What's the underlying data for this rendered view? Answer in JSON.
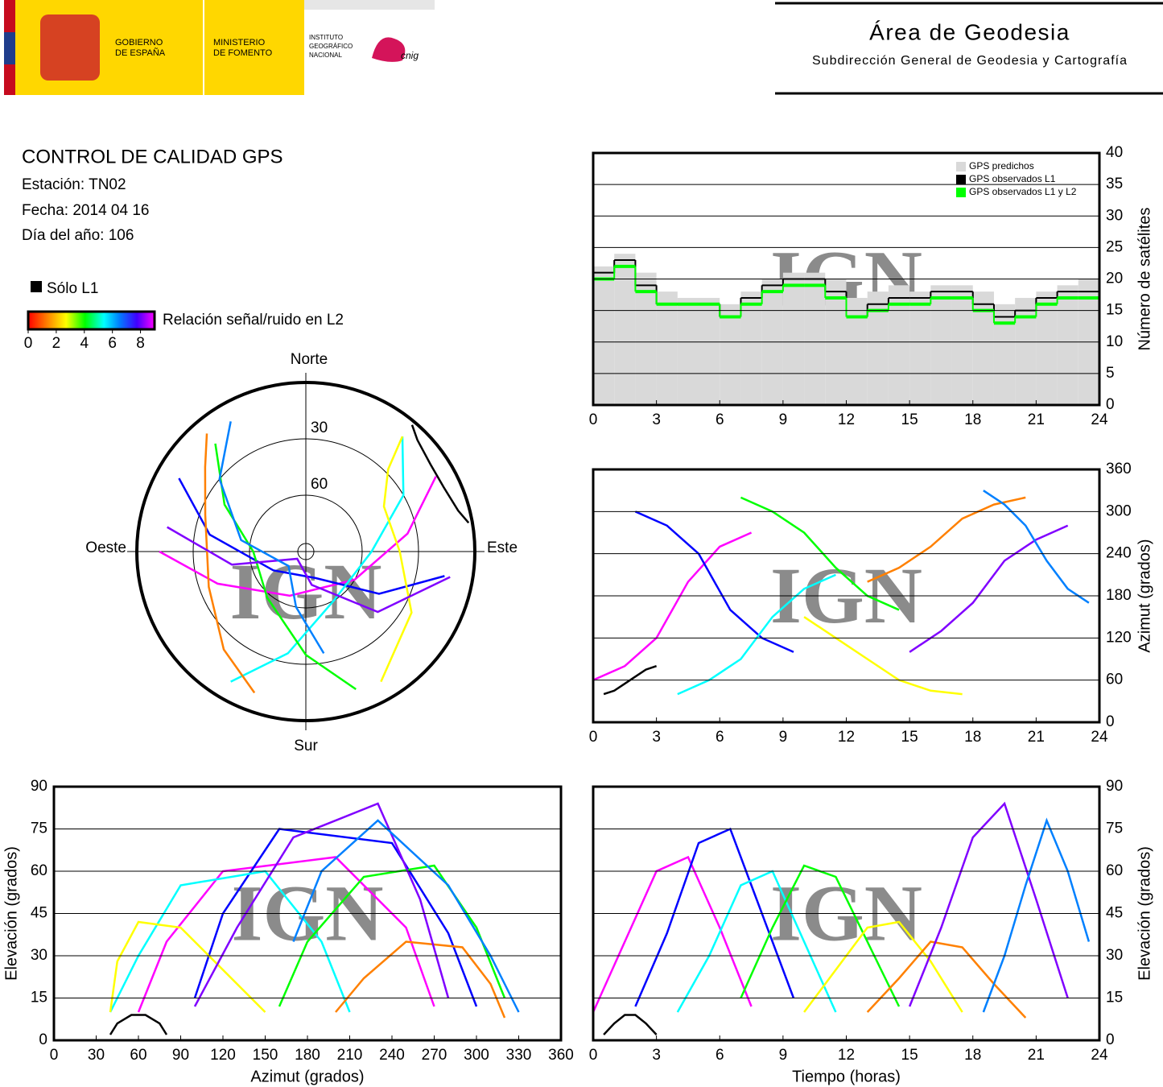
{
  "header": {
    "gov": [
      "GOBIERNO",
      "DE ESPAÑA"
    ],
    "ministry": [
      "MINISTERIO",
      "DE FOMENTO"
    ],
    "institute": [
      "INSTITUTO",
      "GEOGRÁFICO",
      "NACIONAL"
    ],
    "cnig": "cnig",
    "area": "Área de Geodesia",
    "subdirection": "Subdirección General de Geodesia y Cartografía"
  },
  "report": {
    "title": "CONTROL DE CALIDAD GPS",
    "station": "Estación: TN02",
    "date": "Fecha: 2014 04 16",
    "day_of_year": "Día del año: 106"
  },
  "legend": {
    "l1_only": "Sólo L1",
    "snr_label": "Relación señal/ruido en L2",
    "snr_lim": [
      0,
      9
    ],
    "snr_ticks": [
      0,
      2,
      4,
      6,
      8
    ]
  },
  "watermark": "IGN",
  "chart_data": [
    {
      "type": "step",
      "ylabel": "Número de satélites",
      "x": [
        0,
        1,
        2,
        3,
        4,
        5,
        6,
        7,
        8,
        9,
        10,
        11,
        12,
        13,
        14,
        15,
        16,
        17,
        18,
        19,
        20,
        21,
        22,
        23
      ],
      "series": [
        {
          "name": "GPS predichos",
          "color": "#d9d9d9",
          "fill": true,
          "values": [
            22,
            24,
            21,
            18,
            17,
            17,
            16,
            18,
            20,
            21,
            21,
            20,
            17,
            18,
            19,
            18,
            19,
            19,
            18,
            16,
            17,
            18,
            19,
            20
          ]
        },
        {
          "name": "GPS observados L1",
          "color": "#000000",
          "values": [
            21,
            23,
            19,
            16,
            16,
            16,
            14,
            17,
            19,
            20,
            20,
            18,
            14,
            16,
            17,
            17,
            18,
            18,
            16,
            14,
            15,
            17,
            18,
            18
          ]
        },
        {
          "name": "GPS observados L1 y L2",
          "color": "#00ff00",
          "values": [
            20,
            22,
            18,
            16,
            16,
            16,
            14,
            16,
            18,
            19,
            19,
            17,
            14,
            15,
            16,
            16,
            17,
            17,
            15,
            13,
            14,
            16,
            17,
            17
          ]
        }
      ],
      "xlim": [
        0,
        24
      ],
      "xticks": [
        0,
        3,
        6,
        9,
        12,
        15,
        18,
        21,
        24
      ],
      "ylim": [
        0,
        40
      ],
      "yticks": [
        0,
        5,
        10,
        15,
        20,
        25,
        30,
        35,
        40
      ],
      "grid": true,
      "y_axis_side": "right"
    },
    {
      "type": "line",
      "ylabel": "Azimut (grados)",
      "series": [
        {
          "color": "#ff00ff",
          "x": [
            0,
            1.5,
            3,
            4.5,
            6,
            7.5
          ],
          "values": [
            60,
            80,
            120,
            200,
            250,
            270
          ]
        },
        {
          "color": "#0000ff",
          "x": [
            2,
            3.5,
            5,
            6.5,
            8,
            9.5
          ],
          "values": [
            300,
            280,
            240,
            160,
            120,
            100
          ]
        },
        {
          "color": "#00ffff",
          "x": [
            4,
            5.5,
            7,
            8.5,
            10,
            11.5
          ],
          "values": [
            40,
            60,
            90,
            150,
            190,
            210
          ]
        },
        {
          "color": "#00ff00",
          "x": [
            7,
            8.5,
            10,
            11.5,
            13,
            14.5
          ],
          "values": [
            320,
            300,
            270,
            220,
            180,
            160
          ]
        },
        {
          "color": "#ffff00",
          "x": [
            10,
            11.5,
            13,
            14.5,
            16,
            17.5
          ],
          "values": [
            150,
            120,
            90,
            60,
            45,
            40
          ]
        },
        {
          "color": "#ff8000",
          "x": [
            13,
            14.5,
            16,
            17.5,
            19,
            20.5
          ],
          "values": [
            200,
            220,
            250,
            290,
            310,
            320
          ]
        },
        {
          "color": "#8000ff",
          "x": [
            15,
            16.5,
            18,
            19.5,
            21,
            22.5
          ],
          "values": [
            100,
            130,
            170,
            230,
            260,
            280
          ]
        },
        {
          "color": "#0080ff",
          "x": [
            18.5,
            19.5,
            20.5,
            21.5,
            22.5,
            23.5
          ],
          "values": [
            330,
            310,
            280,
            230,
            190,
            170
          ]
        },
        {
          "color": "#000000",
          "x": [
            0.5,
            1,
            1.5,
            2,
            2.5,
            3
          ],
          "values": [
            40,
            45,
            55,
            65,
            75,
            80
          ]
        }
      ],
      "xlim": [
        0,
        24
      ],
      "xticks": [
        0,
        3,
        6,
        9,
        12,
        15,
        18,
        21,
        24
      ],
      "ylim": [
        0,
        360
      ],
      "yticks": [
        0,
        60,
        120,
        180,
        240,
        300,
        360
      ],
      "grid": true,
      "y_axis_side": "right"
    },
    {
      "type": "line",
      "xlabel": "Azimut (grados)",
      "ylabel": "Elevación (grados)",
      "series": [
        {
          "color": "#ff00ff",
          "x": [
            60,
            80,
            120,
            200,
            250,
            270
          ],
          "values": [
            10,
            35,
            60,
            65,
            40,
            12
          ]
        },
        {
          "color": "#0000ff",
          "x": [
            300,
            280,
            240,
            160,
            120,
            100
          ],
          "values": [
            12,
            38,
            70,
            75,
            45,
            15
          ]
        },
        {
          "color": "#00ffff",
          "x": [
            40,
            60,
            90,
            150,
            190,
            210
          ],
          "values": [
            10,
            30,
            55,
            60,
            35,
            10
          ]
        },
        {
          "color": "#00ff00",
          "x": [
            320,
            300,
            270,
            220,
            180,
            160
          ],
          "values": [
            15,
            40,
            62,
            58,
            35,
            12
          ]
        },
        {
          "color": "#ffff00",
          "x": [
            150,
            120,
            90,
            60,
            45,
            40
          ],
          "values": [
            10,
            25,
            40,
            42,
            28,
            10
          ]
        },
        {
          "color": "#ff8000",
          "x": [
            200,
            220,
            250,
            290,
            310,
            320
          ],
          "values": [
            10,
            22,
            35,
            33,
            20,
            8
          ]
        },
        {
          "color": "#8000ff",
          "x": [
            100,
            130,
            170,
            230,
            260,
            280
          ],
          "values": [
            12,
            40,
            72,
            84,
            50,
            15
          ]
        },
        {
          "color": "#0080ff",
          "x": [
            330,
            310,
            280,
            230,
            190,
            170
          ],
          "values": [
            10,
            30,
            55,
            78,
            60,
            35
          ]
        },
        {
          "color": "#000000",
          "x": [
            40,
            45,
            55,
            65,
            75,
            80
          ],
          "values": [
            2,
            6,
            9,
            9,
            6,
            2
          ]
        }
      ],
      "xlim": [
        0,
        360
      ],
      "xticks": [
        0,
        30,
        60,
        90,
        120,
        150,
        180,
        210,
        240,
        270,
        300,
        330,
        360
      ],
      "ylim": [
        0,
        90
      ],
      "yticks": [
        0,
        15,
        30,
        45,
        60,
        75,
        90
      ],
      "grid": true,
      "y_axis_side": "left"
    },
    {
      "type": "line",
      "xlabel": "Tiempo (horas)",
      "ylabel": "Elevación (grados)",
      "series": [
        {
          "color": "#ff00ff",
          "x": [
            0,
            1.5,
            3,
            4.5,
            6,
            7.5
          ],
          "values": [
            10,
            35,
            60,
            65,
            40,
            12
          ]
        },
        {
          "color": "#0000ff",
          "x": [
            2,
            3.5,
            5,
            6.5,
            8,
            9.5
          ],
          "values": [
            12,
            38,
            70,
            75,
            45,
            15
          ]
        },
        {
          "color": "#00ffff",
          "x": [
            4,
            5.5,
            7,
            8.5,
            10,
            11.5
          ],
          "values": [
            10,
            30,
            55,
            60,
            35,
            10
          ]
        },
        {
          "color": "#00ff00",
          "x": [
            7,
            8.5,
            10,
            11.5,
            13,
            14.5
          ],
          "values": [
            15,
            40,
            62,
            58,
            35,
            12
          ]
        },
        {
          "color": "#ffff00",
          "x": [
            10,
            11.5,
            13,
            14.5,
            16,
            17.5
          ],
          "values": [
            10,
            25,
            40,
            42,
            28,
            10
          ]
        },
        {
          "color": "#ff8000",
          "x": [
            13,
            14.5,
            16,
            17.5,
            19,
            20.5
          ],
          "values": [
            10,
            22,
            35,
            33,
            20,
            8
          ]
        },
        {
          "color": "#8000ff",
          "x": [
            15,
            16.5,
            18,
            19.5,
            21,
            22.5
          ],
          "values": [
            12,
            40,
            72,
            84,
            50,
            15
          ]
        },
        {
          "color": "#0080ff",
          "x": [
            18.5,
            19.5,
            20.5,
            21.5,
            22.5,
            23.5
          ],
          "values": [
            10,
            30,
            55,
            78,
            60,
            35
          ]
        },
        {
          "color": "#000000",
          "x": [
            0.5,
            1,
            1.5,
            2,
            2.5,
            3
          ],
          "values": [
            2,
            6,
            9,
            9,
            6,
            2
          ]
        }
      ],
      "xlim": [
        0,
        24
      ],
      "xticks": [
        0,
        3,
        6,
        9,
        12,
        15,
        18,
        21,
        24
      ],
      "ylim": [
        0,
        90
      ],
      "yticks": [
        0,
        15,
        30,
        45,
        60,
        75,
        90
      ],
      "grid": true,
      "y_axis_side": "right"
    },
    {
      "type": "polar",
      "labels": {
        "north": "Norte",
        "south": "Sur",
        "east": "Este",
        "west": "Oeste"
      },
      "rlim": [
        90,
        0
      ],
      "rticks": [
        30,
        60
      ],
      "series": [
        {
          "color": "#ff00ff",
          "theta": [
            60,
            80,
            120,
            200,
            250,
            270
          ],
          "r": [
            10,
            35,
            60,
            65,
            40,
            12
          ]
        },
        {
          "color": "#0000ff",
          "theta": [
            300,
            280,
            240,
            160,
            120,
            100
          ],
          "r": [
            12,
            38,
            70,
            75,
            45,
            15
          ]
        },
        {
          "color": "#00ffff",
          "theta": [
            40,
            60,
            90,
            150,
            190,
            210
          ],
          "r": [
            10,
            30,
            55,
            60,
            35,
            10
          ]
        },
        {
          "color": "#00ff00",
          "theta": [
            320,
            300,
            270,
            220,
            180,
            160
          ],
          "r": [
            15,
            40,
            62,
            58,
            35,
            12
          ]
        },
        {
          "color": "#ffff00",
          "theta": [
            150,
            120,
            90,
            60,
            45,
            40
          ],
          "r": [
            10,
            25,
            40,
            42,
            28,
            10
          ]
        },
        {
          "color": "#ff8000",
          "theta": [
            200,
            220,
            250,
            290,
            310,
            320
          ],
          "r": [
            10,
            22,
            35,
            33,
            20,
            8
          ]
        },
        {
          "color": "#8000ff",
          "theta": [
            100,
            130,
            170,
            230,
            260,
            280
          ],
          "r": [
            12,
            40,
            72,
            84,
            50,
            15
          ]
        },
        {
          "color": "#0080ff",
          "theta": [
            330,
            310,
            280,
            230,
            190,
            170
          ],
          "r": [
            10,
            30,
            55,
            78,
            60,
            35
          ]
        },
        {
          "color": "#000000",
          "theta": [
            40,
            45,
            55,
            65,
            75,
            80
          ],
          "r": [
            2,
            6,
            9,
            9,
            6,
            2
          ]
        }
      ]
    }
  ]
}
